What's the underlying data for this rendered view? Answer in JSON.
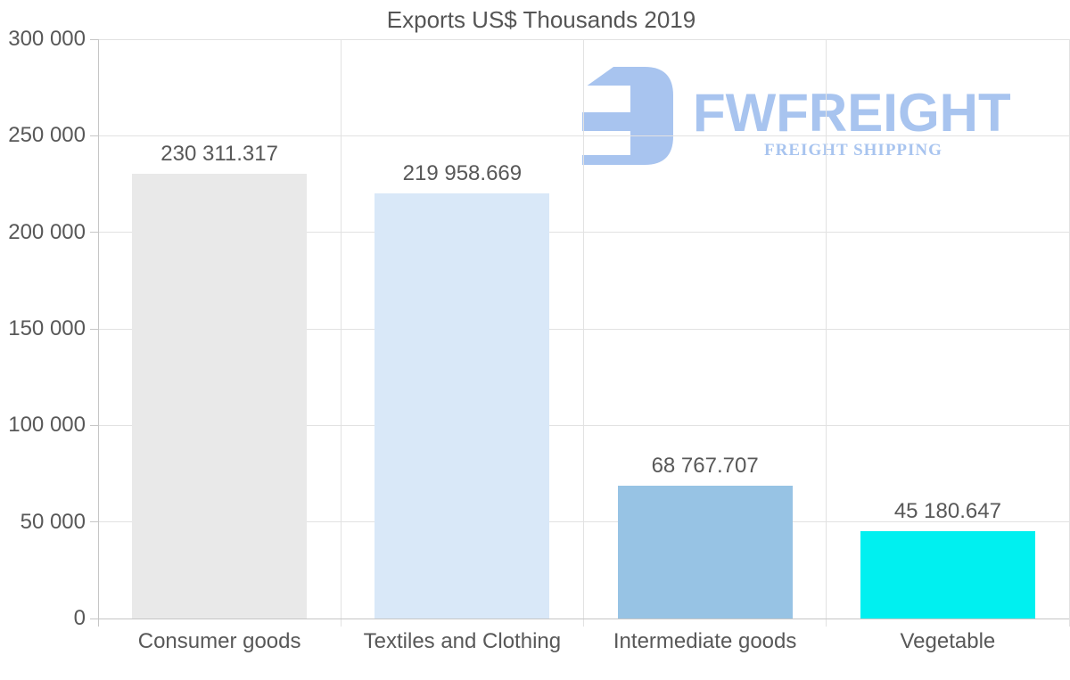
{
  "chart_data": {
    "type": "bar",
    "title": "Exports US$ Thousands 2019",
    "categories": [
      "Consumer goods",
      "Textiles and Clothing",
      "Intermediate goods",
      "Vegetable"
    ],
    "values": [
      230311.317,
      219958.669,
      68767.707,
      45180.647
    ],
    "value_labels": [
      "230 311.317",
      "219 958.669",
      "68 767.707",
      "45 180.647"
    ],
    "bar_colors": [
      "#e9e9e9",
      "#d9e8f8",
      "#97c3e4",
      "#00f0f0"
    ],
    "xlabel": "",
    "ylabel": "",
    "ylim": [
      0,
      300000
    ],
    "yticks": [
      0,
      50000,
      100000,
      150000,
      200000,
      250000,
      300000
    ],
    "ytick_labels": [
      "0",
      "50 000",
      "100 000",
      "150 000",
      "200 000",
      "250 000",
      "300 000"
    ],
    "grid": true,
    "legend": false
  },
  "logo": {
    "wordmark": "FWFREIGHT",
    "subtitle": "FREIGHT SHIPPING",
    "color": "#a8c4ef"
  },
  "colors": {
    "background": "#ffffff",
    "grid": "#e2e2e2",
    "axis": "#c6c6c6",
    "text": "#585858"
  }
}
